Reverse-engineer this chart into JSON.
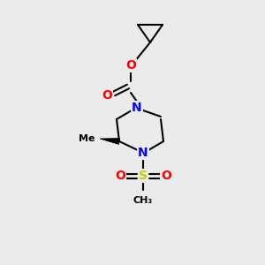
{
  "background_color": "#ebebeb",
  "bond_color": "#000000",
  "atom_colors": {
    "O": "#ff0000",
    "N": "#0000ff",
    "S": "#cccc00",
    "C": "#000000"
  },
  "figsize": [
    3.0,
    3.0
  ],
  "dpi": 100
}
